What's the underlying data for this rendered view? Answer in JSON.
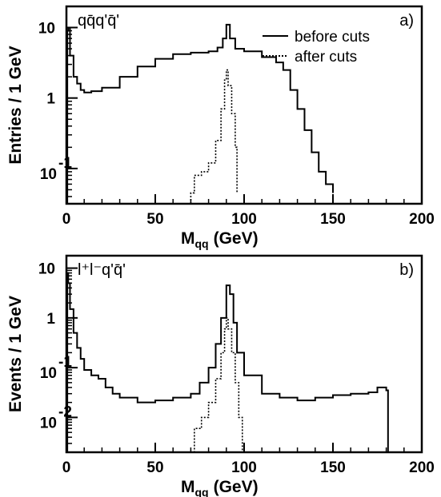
{
  "chart_data": [
    {
      "type": "line",
      "panel_label": "a)",
      "annotation": "qq̄q'q̄'",
      "xlabel": "M",
      "xlabel_sub": "qq",
      "xlabel_unit": "(GeV)",
      "ylabel": "Entries / 1 GeV",
      "xlim": [
        0,
        200
      ],
      "ylim_log10": [
        -1.5,
        1.3
      ],
      "log_y": true,
      "grid": false,
      "legend_position": "top-right",
      "x_ticks": [
        0,
        50,
        100,
        150,
        200
      ],
      "x_tick_labels": [
        "0",
        "50",
        "100",
        "150",
        "200"
      ],
      "y_tick_labels": [
        {
          "value_log10": 1,
          "text": "10",
          "sup": ""
        },
        {
          "value_log10": 0,
          "text": "1",
          "sup": ""
        },
        {
          "value_log10": -1,
          "text": "10",
          "sup": "-1"
        }
      ],
      "series": [
        {
          "name": "before cuts",
          "style": "solid",
          "points": [
            [
              0.5,
              9
            ],
            [
              1,
              10
            ],
            [
              2,
              4
            ],
            [
              4,
              2
            ],
            [
              6,
              1.6
            ],
            [
              8,
              1.3
            ],
            [
              10,
              1.2
            ],
            [
              14,
              1.25
            ],
            [
              20,
              1.4
            ],
            [
              30,
              2.0
            ],
            [
              40,
              2.8
            ],
            [
              50,
              3.6
            ],
            [
              60,
              4.2
            ],
            [
              70,
              4.4
            ],
            [
              80,
              4.6
            ],
            [
              85,
              5.2
            ],
            [
              88,
              7
            ],
            [
              90,
              11
            ],
            [
              92,
              7
            ],
            [
              95,
              5
            ],
            [
              100,
              4.6
            ],
            [
              110,
              3.8
            ],
            [
              118,
              3.2
            ],
            [
              122,
              2.5
            ],
            [
              126,
              1.3
            ],
            [
              130,
              0.7
            ],
            [
              134,
              0.35
            ],
            [
              138,
              0.17
            ],
            [
              142,
              0.09
            ],
            [
              146,
              0.06
            ],
            [
              150,
              0.045
            ]
          ]
        },
        {
          "name": "after cuts",
          "style": "dotted",
          "points": [
            [
              70,
              0.045
            ],
            [
              72,
              0.08
            ],
            [
              76,
              0.09
            ],
            [
              80,
              0.12
            ],
            [
              84,
              0.25
            ],
            [
              87,
              0.7
            ],
            [
              89,
              1.8
            ],
            [
              90,
              2.5
            ],
            [
              91,
              1.5
            ],
            [
              93,
              0.6
            ],
            [
              95,
              0.2
            ],
            [
              96,
              0.045
            ]
          ]
        }
      ]
    },
    {
      "type": "line",
      "panel_label": "b)",
      "annotation": "l⁺l⁻q'q̄'",
      "xlabel": "M",
      "xlabel_sub": "qq",
      "xlabel_unit": "(GeV)",
      "ylabel": "Events / 1 GeV",
      "xlim": [
        0,
        200
      ],
      "ylim_log10": [
        -2.7,
        1.25
      ],
      "log_y": true,
      "grid": false,
      "legend_position": "none",
      "x_ticks": [
        0,
        50,
        100,
        150,
        200
      ],
      "x_tick_labels": [
        "0",
        "50",
        "100",
        "150",
        "200"
      ],
      "y_tick_labels": [
        {
          "value_log10": 1,
          "text": "10",
          "sup": ""
        },
        {
          "value_log10": 0,
          "text": "1",
          "sup": ""
        },
        {
          "value_log10": -1,
          "text": "10",
          "sup": "-1"
        },
        {
          "value_log10": -2,
          "text": "10",
          "sup": "-2"
        }
      ],
      "series": [
        {
          "name": "",
          "style": "solid",
          "points": [
            [
              0.5,
              8
            ],
            [
              1,
              5
            ],
            [
              2,
              1.5
            ],
            [
              4,
              0.5
            ],
            [
              6,
              0.25
            ],
            [
              8,
              0.15
            ],
            [
              10,
              0.09
            ],
            [
              14,
              0.07
            ],
            [
              18,
              0.06
            ],
            [
              22,
              0.04
            ],
            [
              26,
              0.03
            ],
            [
              30,
              0.025
            ],
            [
              40,
              0.02
            ],
            [
              50,
              0.022
            ],
            [
              60,
              0.025
            ],
            [
              70,
              0.03
            ],
            [
              75,
              0.05
            ],
            [
              80,
              0.1
            ],
            [
              84,
              0.3
            ],
            [
              87,
              1.0
            ],
            [
              90,
              4.5
            ],
            [
              92,
              3.0
            ],
            [
              94,
              0.8
            ],
            [
              96,
              0.2
            ],
            [
              100,
              0.07
            ],
            [
              110,
              0.03
            ],
            [
              120,
              0.025
            ],
            [
              130,
              0.022
            ],
            [
              140,
              0.025
            ],
            [
              150,
              0.028
            ],
            [
              160,
              0.03
            ],
            [
              170,
              0.032
            ],
            [
              175,
              0.04
            ],
            [
              180,
              0.035
            ],
            [
              181,
              0.002
            ]
          ]
        },
        {
          "name": "",
          "style": "dotted",
          "points": [
            [
              70,
              0.002
            ],
            [
              72,
              0.006
            ],
            [
              76,
              0.01
            ],
            [
              80,
              0.02
            ],
            [
              84,
              0.06
            ],
            [
              87,
              0.2
            ],
            [
              89,
              0.6
            ],
            [
              90,
              1.0
            ],
            [
              91,
              0.6
            ],
            [
              93,
              0.2
            ],
            [
              95,
              0.05
            ],
            [
              97,
              0.01
            ],
            [
              99,
              0.002
            ]
          ]
        }
      ]
    }
  ]
}
